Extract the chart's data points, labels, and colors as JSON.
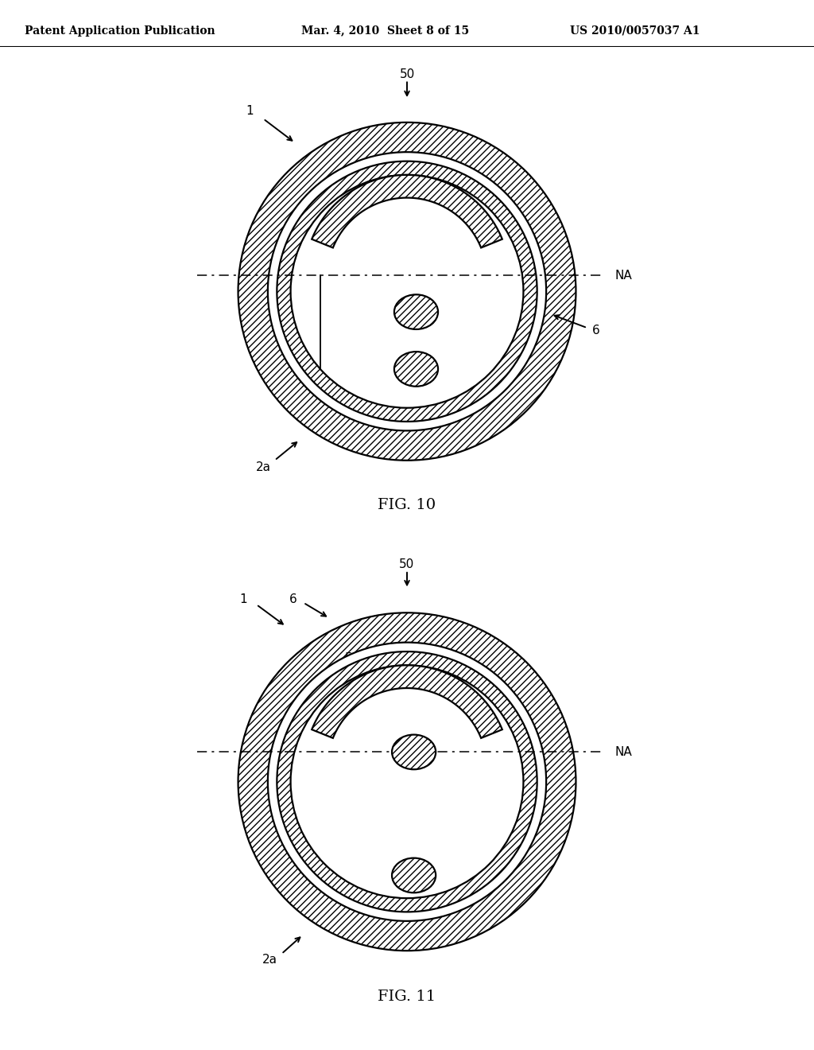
{
  "header_left": "Patent Application Publication",
  "header_mid": "Mar. 4, 2010  Sheet 8 of 15",
  "header_right": "US 2010/0057037 A1",
  "bg_color": "#ffffff",
  "fig10_caption": "FIG. 10",
  "fig11_caption": "FIG. 11",
  "lw_main": 1.6,
  "lw_thin": 1.0,
  "fontsize_label": 11,
  "fontsize_caption": 14,
  "fontsize_header": 10
}
